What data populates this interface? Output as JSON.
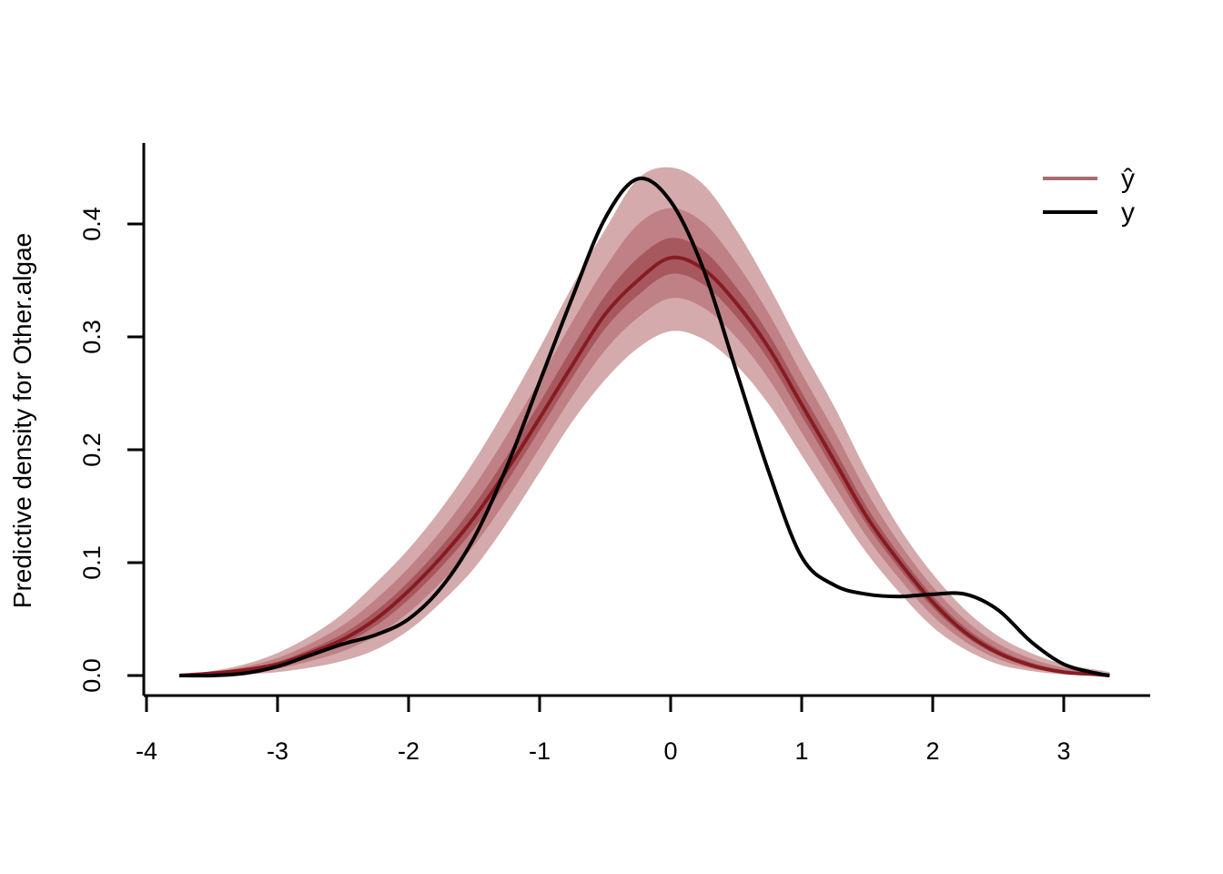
{
  "chart_data": {
    "type": "area",
    "title": "",
    "xlabel": "",
    "ylabel": "Predictive density for Other.algae",
    "xlim": [
      -4,
      3.6
    ],
    "ylim": [
      0,
      0.45
    ],
    "x_ticks": [
      "-4",
      "-3",
      "-2",
      "-1",
      "0",
      "1",
      "2",
      "3"
    ],
    "y_ticks": [
      "0.0",
      "0.1",
      "0.2",
      "0.3",
      "0.4"
    ],
    "grid": false,
    "legend_position": "top-right",
    "legend": [
      {
        "label": "ŷ",
        "color": "#a86b70"
      },
      {
        "label": "y",
        "color": "#000000"
      }
    ],
    "colors": {
      "band_outer": "#d4aaac",
      "band_middle": "#bf8185",
      "band_inner": "#a7585e",
      "median": "#861c22",
      "observed": "#000000"
    },
    "x": [
      -3.75,
      -3.5,
      -3.25,
      -3.0,
      -2.75,
      -2.5,
      -2.25,
      -2.0,
      -1.75,
      -1.5,
      -1.25,
      -1.0,
      -0.75,
      -0.5,
      -0.25,
      0.0,
      0.25,
      0.5,
      0.75,
      1.0,
      1.25,
      1.5,
      1.75,
      2.0,
      2.25,
      2.5,
      2.75,
      3.0,
      3.25,
      3.35
    ],
    "series": [
      {
        "name": "ŷ",
        "role": "median",
        "values": [
          0.0,
          0.002,
          0.005,
          0.01,
          0.02,
          0.032,
          0.05,
          0.075,
          0.105,
          0.14,
          0.182,
          0.228,
          0.275,
          0.32,
          0.35,
          0.37,
          0.36,
          0.33,
          0.29,
          0.24,
          0.19,
          0.14,
          0.1,
          0.065,
          0.038,
          0.02,
          0.009,
          0.003,
          0.001,
          0.0
        ]
      },
      {
        "name": "outer band lower",
        "values": [
          0.0,
          0.0005,
          0.001,
          0.003,
          0.007,
          0.013,
          0.023,
          0.04,
          0.065,
          0.095,
          0.135,
          0.18,
          0.225,
          0.262,
          0.29,
          0.305,
          0.298,
          0.275,
          0.24,
          0.195,
          0.15,
          0.108,
          0.073,
          0.043,
          0.023,
          0.01,
          0.004,
          0.001,
          0.0,
          0.0
        ]
      },
      {
        "name": "outer band upper",
        "values": [
          0.001,
          0.004,
          0.01,
          0.02,
          0.035,
          0.055,
          0.082,
          0.112,
          0.148,
          0.19,
          0.238,
          0.29,
          0.345,
          0.395,
          0.44,
          0.45,
          0.435,
          0.395,
          0.345,
          0.29,
          0.238,
          0.18,
          0.13,
          0.09,
          0.058,
          0.035,
          0.02,
          0.01,
          0.005,
          0.003
        ]
      },
      {
        "name": "y",
        "values": [
          0.0,
          0.0,
          0.002,
          0.008,
          0.018,
          0.028,
          0.036,
          0.05,
          0.078,
          0.122,
          0.185,
          0.26,
          0.335,
          0.405,
          0.44,
          0.42,
          0.36,
          0.27,
          0.18,
          0.105,
          0.08,
          0.072,
          0.07,
          0.072,
          0.072,
          0.058,
          0.03,
          0.01,
          0.002,
          0.0
        ]
      }
    ]
  }
}
